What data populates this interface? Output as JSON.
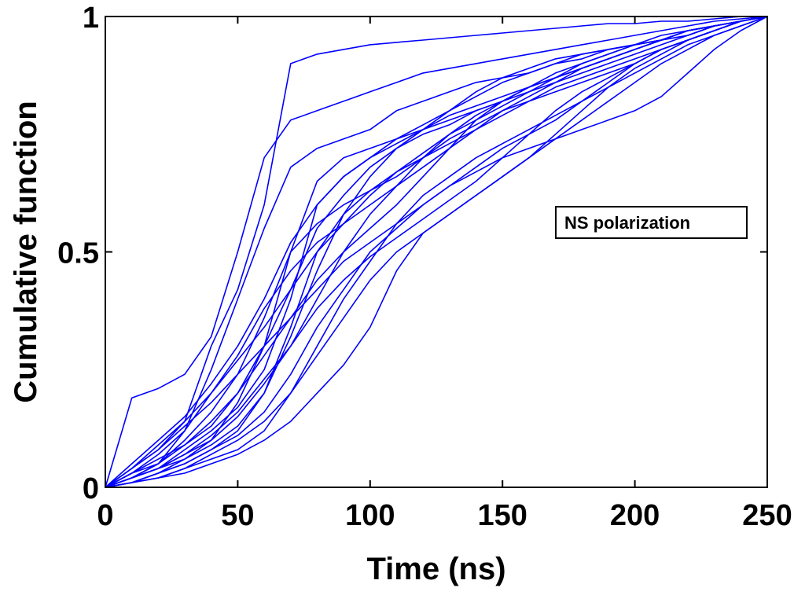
{
  "chart_data": {
    "type": "line",
    "title": "",
    "xlabel": "Time (ns)",
    "ylabel": "Cumulative function",
    "xlim": [
      0,
      250
    ],
    "ylim": [
      0,
      1
    ],
    "xticks": [
      0,
      50,
      100,
      150,
      200,
      250
    ],
    "yticks": [
      0,
      0.5,
      1
    ],
    "xtick_labels": [
      "0",
      "50",
      "100",
      "150",
      "200",
      "250"
    ],
    "ytick_labels": [
      "0",
      "0.5",
      "1"
    ],
    "grid": false,
    "legend": {
      "text": "NS polarization",
      "position": "right"
    },
    "line_color": "#0000ff",
    "x": [
      0,
      10,
      20,
      30,
      40,
      50,
      60,
      70,
      80,
      90,
      100,
      110,
      120,
      130,
      140,
      150,
      160,
      170,
      180,
      190,
      200,
      210,
      220,
      230,
      240,
      250
    ],
    "series": [
      {
        "values": [
          0,
          0.04,
          0.08,
          0.14,
          0.3,
          0.42,
          0.6,
          0.9,
          0.92,
          0.93,
          0.94,
          0.945,
          0.95,
          0.955,
          0.96,
          0.965,
          0.97,
          0.975,
          0.98,
          0.985,
          0.985,
          0.99,
          0.99,
          0.995,
          1,
          1
        ]
      },
      {
        "values": [
          0,
          0.19,
          0.21,
          0.24,
          0.32,
          0.5,
          0.7,
          0.78,
          0.8,
          0.82,
          0.84,
          0.86,
          0.88,
          0.89,
          0.9,
          0.91,
          0.92,
          0.93,
          0.94,
          0.95,
          0.96,
          0.97,
          0.98,
          0.99,
          0.995,
          1
        ]
      },
      {
        "values": [
          0,
          0.02,
          0.05,
          0.12,
          0.25,
          0.4,
          0.55,
          0.68,
          0.72,
          0.74,
          0.76,
          0.8,
          0.82,
          0.84,
          0.86,
          0.87,
          0.88,
          0.9,
          0.91,
          0.93,
          0.94,
          0.95,
          0.97,
          0.98,
          0.99,
          1
        ]
      },
      {
        "values": [
          0,
          0.01,
          0.03,
          0.06,
          0.1,
          0.18,
          0.3,
          0.5,
          0.65,
          0.7,
          0.72,
          0.74,
          0.76,
          0.78,
          0.8,
          0.82,
          0.85,
          0.87,
          0.89,
          0.91,
          0.93,
          0.95,
          0.97,
          0.98,
          0.99,
          1
        ]
      },
      {
        "values": [
          0,
          0.03,
          0.06,
          0.09,
          0.13,
          0.2,
          0.3,
          0.42,
          0.55,
          0.62,
          0.68,
          0.72,
          0.75,
          0.77,
          0.8,
          0.82,
          0.84,
          0.86,
          0.88,
          0.9,
          0.92,
          0.94,
          0.96,
          0.98,
          0.99,
          1
        ]
      },
      {
        "values": [
          0,
          0.02,
          0.04,
          0.07,
          0.1,
          0.15,
          0.22,
          0.3,
          0.4,
          0.5,
          0.58,
          0.64,
          0.68,
          0.72,
          0.76,
          0.8,
          0.83,
          0.86,
          0.89,
          0.91,
          0.93,
          0.95,
          0.97,
          0.98,
          0.99,
          1
        ]
      },
      {
        "values": [
          0,
          0.04,
          0.08,
          0.13,
          0.18,
          0.24,
          0.3,
          0.36,
          0.42,
          0.48,
          0.52,
          0.56,
          0.6,
          0.64,
          0.68,
          0.72,
          0.75,
          0.78,
          0.82,
          0.86,
          0.9,
          0.93,
          0.95,
          0.97,
          0.99,
          1
        ]
      },
      {
        "values": [
          0,
          0.01,
          0.02,
          0.04,
          0.06,
          0.08,
          0.12,
          0.2,
          0.3,
          0.4,
          0.48,
          0.56,
          0.62,
          0.66,
          0.7,
          0.73,
          0.76,
          0.79,
          0.82,
          0.85,
          0.88,
          0.91,
          0.94,
          0.96,
          0.98,
          1
        ]
      },
      {
        "values": [
          0,
          0.02,
          0.05,
          0.1,
          0.16,
          0.24,
          0.36,
          0.5,
          0.56,
          0.6,
          0.63,
          0.66,
          0.7,
          0.74,
          0.77,
          0.8,
          0.82,
          0.84,
          0.86,
          0.88,
          0.9,
          0.93,
          0.95,
          0.97,
          0.99,
          1
        ]
      },
      {
        "values": [
          0,
          0.01,
          0.02,
          0.03,
          0.05,
          0.07,
          0.1,
          0.14,
          0.2,
          0.26,
          0.34,
          0.46,
          0.54,
          0.58,
          0.62,
          0.66,
          0.7,
          0.74,
          0.78,
          0.82,
          0.86,
          0.9,
          0.93,
          0.96,
          0.98,
          1
        ]
      },
      {
        "values": [
          0,
          0.03,
          0.07,
          0.12,
          0.2,
          0.28,
          0.38,
          0.46,
          0.52,
          0.56,
          0.6,
          0.64,
          0.7,
          0.75,
          0.79,
          0.82,
          0.85,
          0.87,
          0.89,
          0.91,
          0.93,
          0.95,
          0.97,
          0.98,
          0.99,
          1
        ]
      },
      {
        "values": [
          0,
          0.02,
          0.04,
          0.08,
          0.12,
          0.17,
          0.25,
          0.4,
          0.6,
          0.66,
          0.7,
          0.73,
          0.76,
          0.79,
          0.81,
          0.83,
          0.85,
          0.87,
          0.89,
          0.91,
          0.93,
          0.95,
          0.97,
          0.98,
          0.99,
          1
        ]
      },
      {
        "values": [
          0,
          0.05,
          0.1,
          0.15,
          0.22,
          0.3,
          0.4,
          0.52,
          0.6,
          0.66,
          0.7,
          0.74,
          0.77,
          0.8,
          0.83,
          0.86,
          0.88,
          0.9,
          0.92,
          0.93,
          0.94,
          0.95,
          0.97,
          0.98,
          0.99,
          1
        ]
      },
      {
        "values": [
          0,
          0.01,
          0.03,
          0.05,
          0.08,
          0.11,
          0.16,
          0.24,
          0.34,
          0.42,
          0.5,
          0.55,
          0.6,
          0.64,
          0.67,
          0.7,
          0.72,
          0.74,
          0.76,
          0.78,
          0.8,
          0.83,
          0.88,
          0.93,
          0.97,
          1
        ]
      },
      {
        "values": [
          0,
          0.02,
          0.04,
          0.06,
          0.09,
          0.13,
          0.2,
          0.32,
          0.46,
          0.58,
          0.66,
          0.72,
          0.76,
          0.8,
          0.84,
          0.87,
          0.89,
          0.91,
          0.92,
          0.93,
          0.94,
          0.95,
          0.96,
          0.98,
          0.99,
          1
        ]
      },
      {
        "values": [
          0,
          0.03,
          0.05,
          0.09,
          0.14,
          0.2,
          0.28,
          0.36,
          0.44,
          0.5,
          0.55,
          0.6,
          0.66,
          0.72,
          0.78,
          0.82,
          0.85,
          0.88,
          0.9,
          0.92,
          0.94,
          0.95,
          0.96,
          0.98,
          0.99,
          1
        ]
      },
      {
        "values": [
          0,
          0.01,
          0.02,
          0.04,
          0.07,
          0.1,
          0.14,
          0.2,
          0.28,
          0.36,
          0.44,
          0.5,
          0.54,
          0.58,
          0.62,
          0.66,
          0.7,
          0.75,
          0.8,
          0.85,
          0.89,
          0.92,
          0.95,
          0.97,
          0.99,
          1
        ]
      },
      {
        "values": [
          0,
          0.04,
          0.09,
          0.14,
          0.2,
          0.27,
          0.34,
          0.42,
          0.5,
          0.56,
          0.62,
          0.67,
          0.71,
          0.75,
          0.78,
          0.81,
          0.84,
          0.87,
          0.9,
          0.92,
          0.94,
          0.96,
          0.97,
          0.98,
          0.99,
          1
        ]
      },
      {
        "values": [
          0,
          0.02,
          0.04,
          0.07,
          0.11,
          0.16,
          0.23,
          0.3,
          0.38,
          0.44,
          0.49,
          0.53,
          0.57,
          0.61,
          0.65,
          0.7,
          0.75,
          0.8,
          0.84,
          0.87,
          0.9,
          0.93,
          0.95,
          0.97,
          0.99,
          1
        ]
      },
      {
        "values": [
          0,
          0.01,
          0.03,
          0.05,
          0.08,
          0.12,
          0.2,
          0.34,
          0.5,
          0.58,
          0.63,
          0.67,
          0.7,
          0.73,
          0.76,
          0.79,
          0.82,
          0.85,
          0.87,
          0.89,
          0.91,
          0.93,
          0.95,
          0.97,
          0.99,
          1
        ]
      }
    ]
  }
}
